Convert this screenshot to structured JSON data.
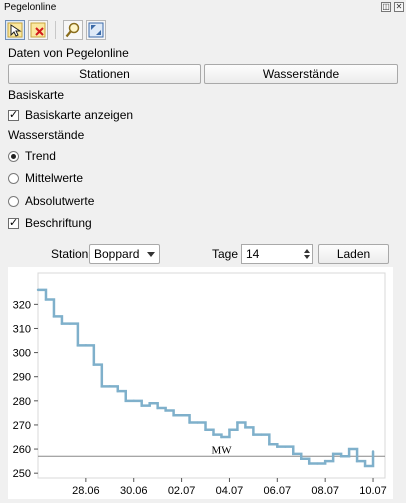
{
  "window": {
    "title": "Pegelonline",
    "float_glyph": "◫",
    "close_glyph": "✕"
  },
  "toolbar": {
    "tools": [
      {
        "icon": "identify-cursor-icon",
        "active": true
      },
      {
        "icon": "delete-icon",
        "active": false
      },
      {
        "icon": "zoom-icon",
        "active": false
      },
      {
        "icon": "zoom-full-icon",
        "active": false
      }
    ]
  },
  "daten": {
    "heading": "Daten von Pegelonline",
    "stationen_label": "Stationen",
    "wasserstaende_label": "Wasserstände"
  },
  "basiskarte": {
    "heading": "Basiskarte",
    "anzeigen_label": "Basiskarte anzeigen",
    "anzeigen_checked": true
  },
  "wasserstaende": {
    "heading": "Wasserstände",
    "options": [
      {
        "label": "Trend",
        "selected": true
      },
      {
        "label": "Mittelwerte",
        "selected": false
      },
      {
        "label": "Absolutwerte",
        "selected": false
      }
    ],
    "beschriftung_label": "Beschriftung",
    "beschriftung_checked": true
  },
  "query": {
    "station_label": "Station",
    "station_value": "Boppard",
    "tage_label": "Tage",
    "tage_value": "14",
    "laden_label": "Laden"
  },
  "colors": {
    "line": "#7fb0cb",
    "mw_line": "#888888",
    "grid": "#e6e6e6"
  },
  "chart_data": {
    "type": "line",
    "title": "",
    "xlabel": "",
    "ylabel": "",
    "ylim": [
      248,
      333
    ],
    "xlim": [
      "26.06",
      "10.07"
    ],
    "x_ticks": [
      "28.06",
      "30.06",
      "02.07",
      "04.07",
      "06.07",
      "08.07",
      "10.07"
    ],
    "y_ticks": [
      250,
      260,
      270,
      280,
      290,
      300,
      310,
      320
    ],
    "mw_label": "MW",
    "mw_value": 257,
    "grid": false,
    "series": [
      {
        "x": [
          "26.06 00:00",
          "26.06 08:00",
          "26.06 16:00",
          "27.06 00:00",
          "27.06 08:00",
          "27.06 16:00",
          "28.06 00:00",
          "28.06 08:00",
          "28.06 16:00",
          "29.06 00:00",
          "29.06 08:00",
          "29.06 16:00",
          "30.06 00:00",
          "30.06 08:00",
          "30.06 16:00",
          "01.07 00:00",
          "01.07 08:00",
          "01.07 16:00",
          "02.07 00:00",
          "02.07 08:00",
          "02.07 16:00",
          "03.07 00:00",
          "03.07 08:00",
          "03.07 16:00",
          "04.07 00:00",
          "04.07 08:00",
          "04.07 16:00",
          "05.07 00:00",
          "05.07 08:00",
          "05.07 16:00",
          "06.07 00:00",
          "06.07 08:00",
          "06.07 16:00",
          "07.07 00:00",
          "07.07 08:00",
          "07.07 16:00",
          "08.07 00:00",
          "08.07 08:00",
          "08.07 16:00",
          "09.07 00:00",
          "09.07 08:00",
          "09.07 16:00",
          "10.07 00:00"
        ],
        "values": [
          326,
          322,
          315,
          312,
          312,
          303,
          303,
          295,
          286,
          286,
          284,
          280,
          280,
          278,
          279,
          277,
          276,
          274,
          274,
          271,
          271,
          268,
          266,
          265,
          268,
          271,
          269,
          266,
          266,
          262,
          261,
          261,
          258,
          256,
          254,
          254,
          255,
          258,
          257,
          260,
          255,
          253,
          259
        ]
      }
    ]
  }
}
